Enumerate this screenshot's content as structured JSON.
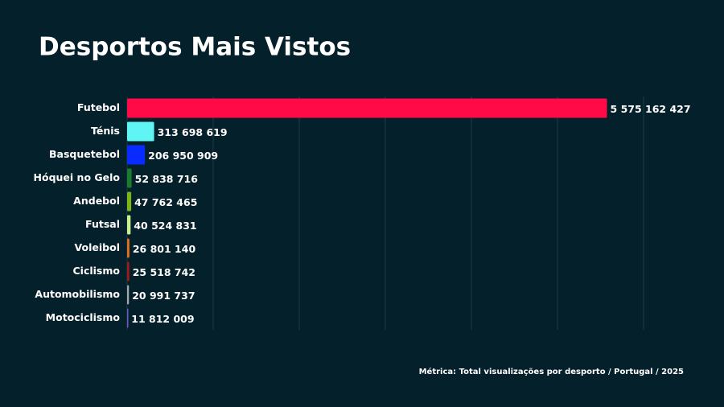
{
  "chart_data": {
    "type": "hbar",
    "title": "Desportos Mais Vistos",
    "caption": "Métrica: Total visualizações por desporto / Portugal / 2025",
    "categories": [
      "Futebol",
      "Ténis",
      "Basquetebol",
      "Hóquei no Gelo",
      "Andebol",
      "Futsal",
      "Voleibol",
      "Ciclismo",
      "Automobilismo",
      "Motociclismo"
    ],
    "values": [
      5575162427,
      313698619,
      206950909,
      52838716,
      47762465,
      40524831,
      26801140,
      25518742,
      20991737,
      11812009
    ],
    "value_labels": [
      "5 575 162 427",
      "313 698 619",
      "206 950 909",
      "52 838 716",
      "47 762 465",
      "40 524 831",
      "26 801 140",
      "25 518 742",
      "20 991 737",
      "11 812 009"
    ],
    "colors": [
      "#ff0a47",
      "#5ff5f5",
      "#0a2bff",
      "#1a7a2e",
      "#7cb518",
      "#c8f08c",
      "#e07020",
      "#a01818",
      "#a0a8b0",
      "#6a5acd"
    ],
    "xlim": [
      0,
      6000000000
    ],
    "xticks": [
      0,
      1000000000,
      2000000000,
      3000000000,
      4000000000,
      5000000000,
      6000000000
    ],
    "grid": true
  }
}
